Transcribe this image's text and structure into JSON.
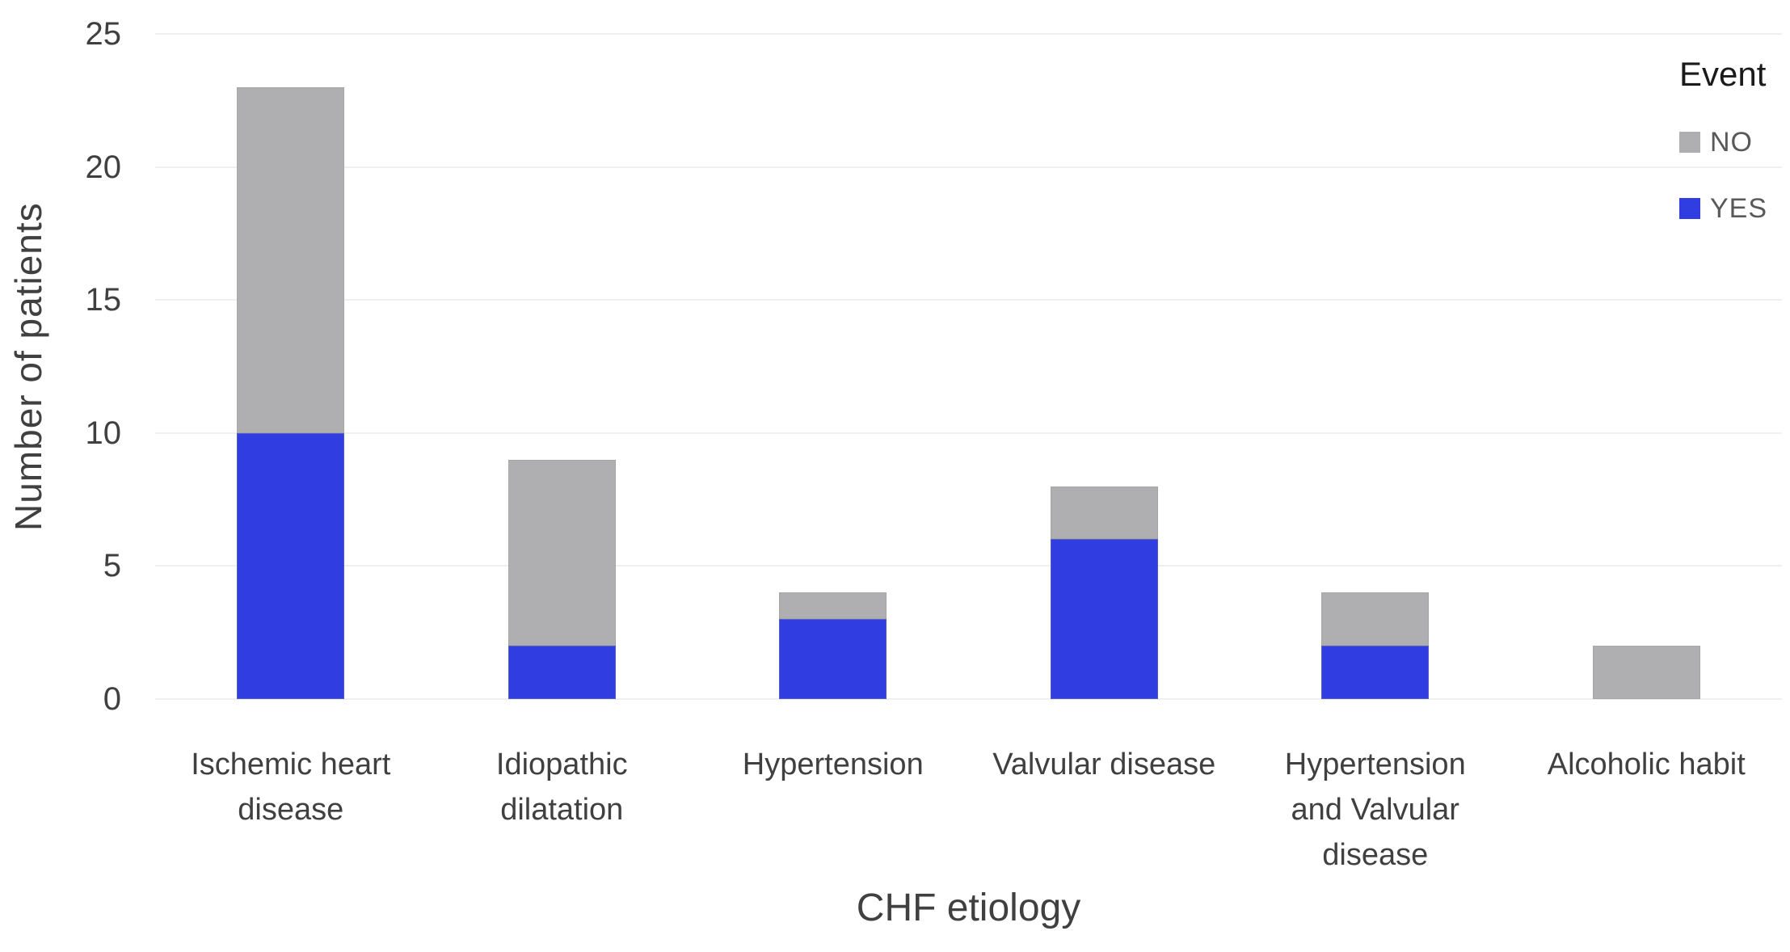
{
  "chart_data": {
    "type": "bar",
    "stacked": true,
    "title": "",
    "xlabel": "CHF etiology",
    "ylabel": "Number of patients",
    "categories": [
      "Ischemic heart\ndisease",
      "Idiopathic\ndilatation",
      "Hypertension",
      "Valvular disease",
      "Hypertension\nand Valvular\ndisease",
      "Alcoholic habit"
    ],
    "series": [
      {
        "name": "YES",
        "color": "#2f3de1",
        "values": [
          10,
          2,
          3,
          6,
          2,
          0
        ]
      },
      {
        "name": "NO",
        "color": "#afafb1",
        "values": [
          13,
          7,
          1,
          2,
          2,
          2
        ]
      }
    ],
    "totals": [
      23,
      9,
      4,
      8,
      4,
      2
    ],
    "stack_order_bottom_to_top": [
      "YES",
      "NO"
    ],
    "ylim": [
      0,
      25
    ],
    "yticks": [
      0,
      5,
      10,
      15,
      20,
      25
    ],
    "grid": "horizontal",
    "legend": {
      "title": "Event",
      "position": "top-right",
      "entries": [
        {
          "label": "NO",
          "color": "#afafb1"
        },
        {
          "label": "YES",
          "color": "#2f3de1"
        }
      ]
    }
  },
  "colors": {
    "yes_blue": "#2f3de1",
    "no_gray": "#afafb1",
    "gridline": "#efefef",
    "axis_text": "#404040",
    "legend_title_text": "#1a1a1a",
    "legend_entry_text": "#595959",
    "background": "#ffffff"
  }
}
